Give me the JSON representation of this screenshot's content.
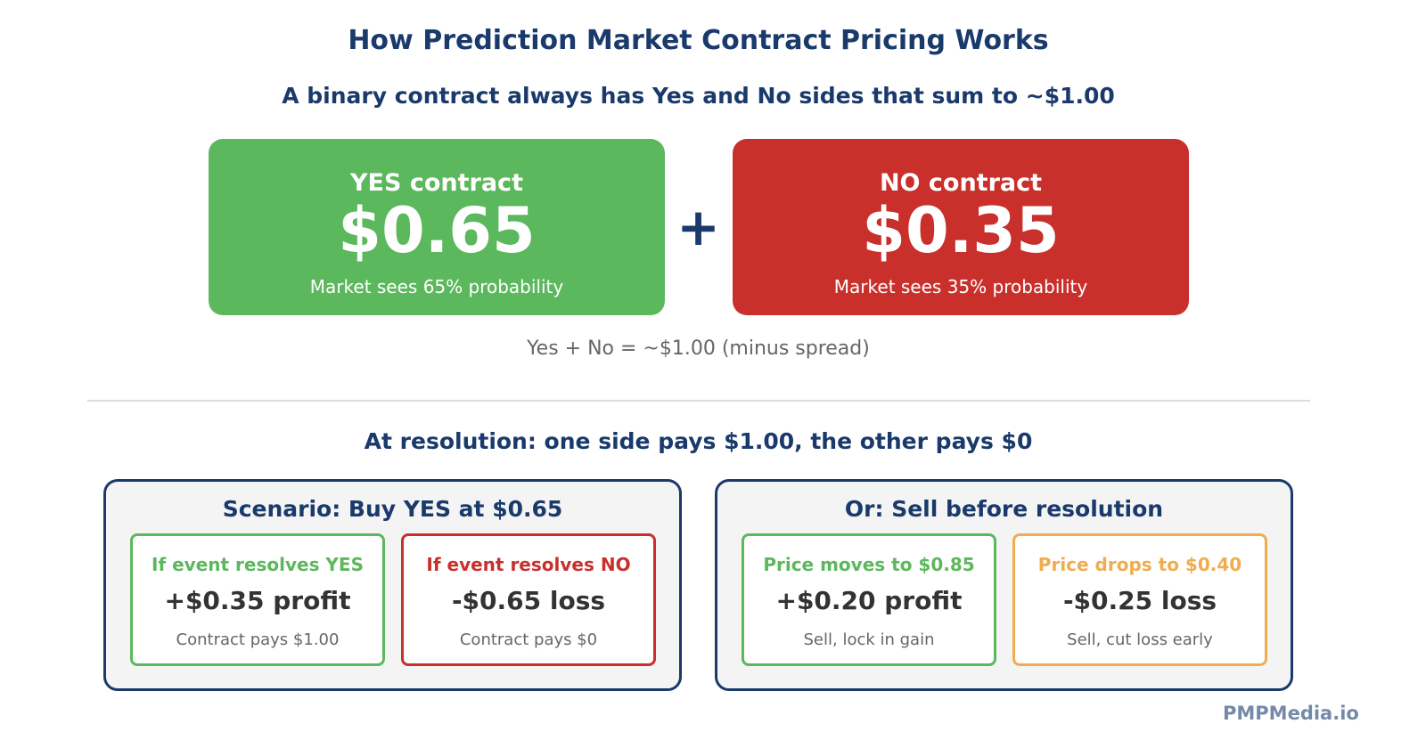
{
  "header": {
    "title": "How Prediction Market Contract Pricing Works",
    "subtitle": "A binary contract always has Yes and No sides that sum to ~$1.00"
  },
  "contracts": {
    "yes": {
      "label": "YES contract",
      "price": "$0.65",
      "probability_text": "Market sees 65% probability",
      "color": "#5cb85c"
    },
    "operator": "+",
    "no": {
      "label": "NO contract",
      "price": "$0.35",
      "probability_text": "Market sees 35% probability",
      "color": "#c9302c"
    },
    "sum_note": "Yes + No = ~$1.00 (minus spread)"
  },
  "resolution": {
    "heading": "At resolution: one side pays $1.00, the other pays $0",
    "panels": [
      {
        "title": "Scenario: Buy YES at $0.65",
        "outcomes": [
          {
            "heading": "If event resolves YES",
            "amount": "+$0.35 profit",
            "note": "Contract pays $1.00",
            "color": "#5cb85c"
          },
          {
            "heading": "If event resolves NO",
            "amount": "-$0.65 loss",
            "note": "Contract pays $0",
            "color": "#c9302c"
          }
        ]
      },
      {
        "title": "Or: Sell before resolution",
        "outcomes": [
          {
            "heading": "Price moves to $0.85",
            "amount": "+$0.20 profit",
            "note": "Sell, lock in gain",
            "color": "#5cb85c"
          },
          {
            "heading": "Price drops to $0.40",
            "amount": "-$0.25 loss",
            "note": "Sell, cut loss early",
            "color": "#f0ad4e"
          }
        ]
      }
    ]
  },
  "footer": {
    "brand": "PMPMedia.io"
  },
  "colors": {
    "navy": "#1a3a6b",
    "green": "#5cb85c",
    "red": "#c9302c",
    "orange": "#f0ad4e",
    "muted_text": "#666666",
    "panel_bg": "#f4f4f4"
  }
}
